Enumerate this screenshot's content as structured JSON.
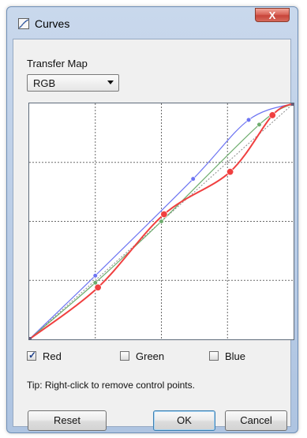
{
  "window": {
    "title": "Curves",
    "close_label": "X"
  },
  "transfer_map": {
    "label": "Transfer Map",
    "selected": "RGB"
  },
  "channels": [
    {
      "name": "Red",
      "checked": true,
      "color": "#f04040"
    },
    {
      "name": "Green",
      "checked": false,
      "color": "#4caf50"
    },
    {
      "name": "Blue",
      "checked": false,
      "color": "#5a67ff"
    }
  ],
  "tip": "Tip: Right-click to remove control points.",
  "buttons": {
    "reset": "Reset",
    "ok": "OK",
    "cancel": "Cancel"
  },
  "curves": {
    "red_points": [
      [
        0,
        0
      ],
      [
        0.26,
        0.22
      ],
      [
        0.51,
        0.53
      ],
      [
        0.76,
        0.71
      ],
      [
        0.92,
        0.95
      ],
      [
        1,
        1
      ]
    ],
    "green_points": [
      [
        0,
        0
      ],
      [
        0.25,
        0.24
      ],
      [
        0.5,
        0.5
      ],
      [
        0.87,
        0.91
      ],
      [
        1,
        1
      ]
    ],
    "blue_points": [
      [
        0,
        0
      ],
      [
        0.25,
        0.27
      ],
      [
        0.62,
        0.68
      ],
      [
        0.83,
        0.93
      ],
      [
        1,
        1
      ]
    ],
    "colors": {
      "red": "#f04040",
      "green": "#6dac6d",
      "blue": "#6d74f2",
      "diagonal": "#8a8a8a",
      "grid": "#6a6a6a"
    }
  }
}
